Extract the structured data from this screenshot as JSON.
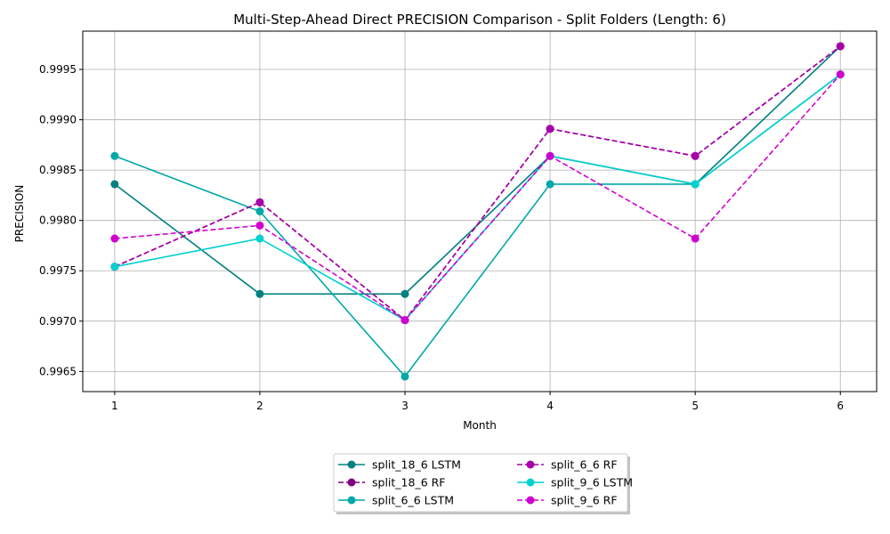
{
  "chart_data": {
    "type": "line",
    "title": "Multi-Step-Ahead Direct PRECISION Comparison - Split Folders (Length: 6)",
    "xlabel": "Month",
    "ylabel": "PRECISION",
    "x": [
      1,
      2,
      3,
      4,
      5,
      6
    ],
    "xlim": [
      0.78,
      6.25
    ],
    "ylim": [
      0.9963,
      0.99988
    ],
    "yticks": [
      "0.9965",
      "0.9970",
      "0.9975",
      "0.9980",
      "0.9985",
      "0.9990",
      "0.9995"
    ],
    "ytick_values": [
      0.9965,
      0.997,
      0.9975,
      0.998,
      0.9985,
      0.999,
      0.9995
    ],
    "grid": true,
    "legend": {
      "placement": "bottom-center",
      "columns": 2
    },
    "series": [
      {
        "name": "split_18_6 LSTM",
        "color": "#008080",
        "style": "solid",
        "values": [
          0.99836,
          0.99727,
          0.99727,
          0.99864,
          0.99836,
          0.99973
        ]
      },
      {
        "name": "split_18_6 RF",
        "color": "#800080",
        "style": "dashed",
        "values": [
          0.99754,
          0.99818,
          0.99701,
          0.99891,
          0.99864,
          0.99973
        ]
      },
      {
        "name": "split_6_6 LSTM",
        "color": "#00a8a8",
        "style": "solid",
        "values": [
          0.99864,
          0.99809,
          0.99645,
          0.99836,
          0.99836,
          0.99945
        ]
      },
      {
        "name": "split_6_6 RF",
        "color": "#a800a8",
        "style": "dashed",
        "values": [
          0.99754,
          0.99818,
          0.99701,
          0.99891,
          0.99864,
          0.99973
        ]
      },
      {
        "name": "split_9_6 LSTM",
        "color": "#00d0d0",
        "style": "solid",
        "values": [
          0.99754,
          0.99782,
          0.99701,
          0.99864,
          0.99836,
          0.99945
        ]
      },
      {
        "name": "split_9_6 RF",
        "color": "#d000d0",
        "style": "dashed",
        "values": [
          0.99782,
          0.99795,
          0.99701,
          0.99864,
          0.99782,
          0.99945
        ]
      }
    ]
  }
}
